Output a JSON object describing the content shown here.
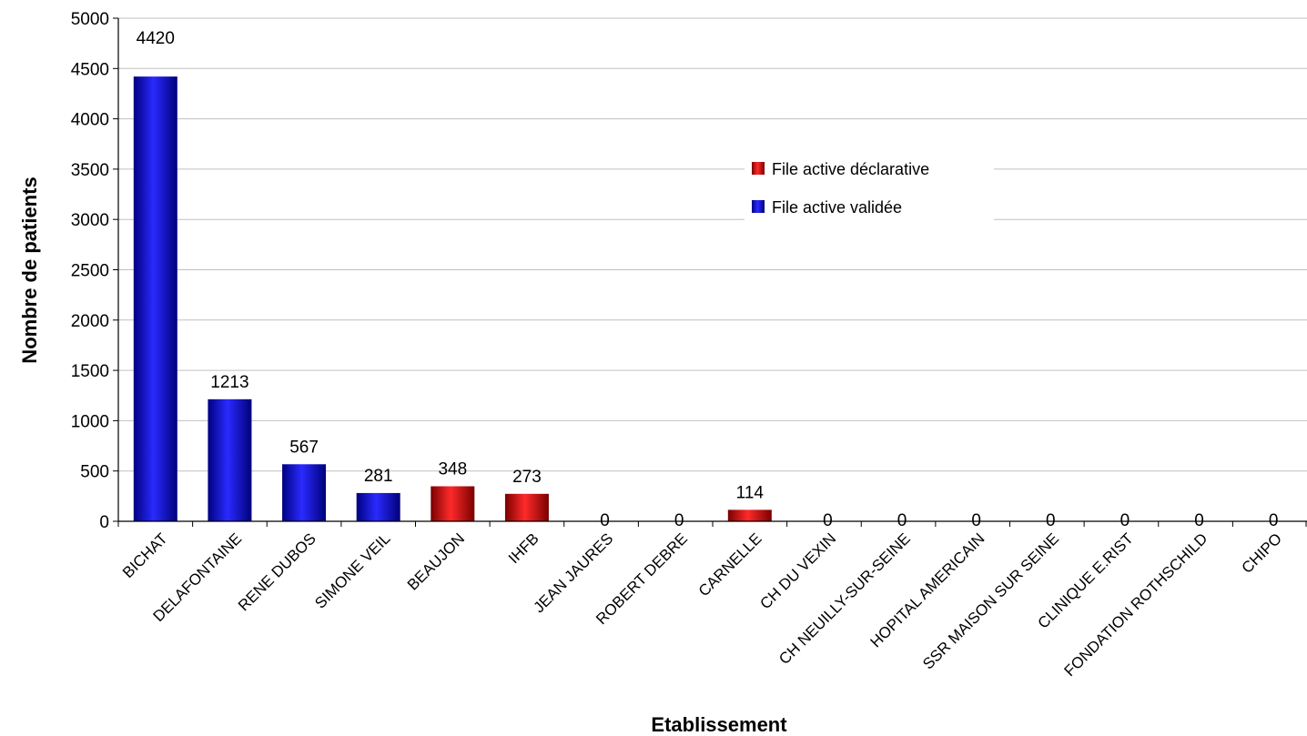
{
  "chart_data": {
    "type": "bar",
    "xlabel": "Etablissement",
    "ylabel": "Nombre de patients",
    "ylim": [
      0,
      5000
    ],
    "yticks": [
      0,
      500,
      1000,
      1500,
      2000,
      2500,
      3000,
      3500,
      4000,
      4500,
      5000
    ],
    "grid": true,
    "legend_position": "upper-right",
    "categories": [
      "BICHAT",
      "DELAFONTAINE",
      "RENE DUBOS",
      "SIMONE VEIL",
      "BEAUJON",
      "IHFB",
      "JEAN JAURES",
      "ROBERT DEBRE",
      "CARNELLE",
      "CH DU VEXIN",
      "CH NEUILLY-SUR-SEINE",
      "HOPITAL AMERICAIN",
      "SSR MAISON SUR SEINE",
      "CLINIQUE E.RIST",
      "FONDATION ROTHSCHILD",
      "CHIPO"
    ],
    "values": [
      4420,
      1213,
      567,
      281,
      348,
      273,
      0,
      0,
      114,
      0,
      0,
      0,
      0,
      0,
      0,
      0
    ],
    "data_labels": [
      "4420",
      "1213",
      "567",
      "281",
      "348",
      "273",
      "0",
      "0",
      "114",
      "0",
      "0",
      "0",
      "0",
      "0",
      "0",
      "0"
    ],
    "bar_series": [
      "validee",
      "validee",
      "validee",
      "validee",
      "declarative",
      "declarative",
      "validee",
      "validee",
      "declarative",
      "validee",
      "validee",
      "validee",
      "validee",
      "validee",
      "validee",
      "validee"
    ],
    "series": [
      {
        "key": "declarative",
        "name": "File active déclarative",
        "color": "#dd0000"
      },
      {
        "key": "validee",
        "name": "File active validée",
        "color": "#0000cc"
      }
    ]
  }
}
